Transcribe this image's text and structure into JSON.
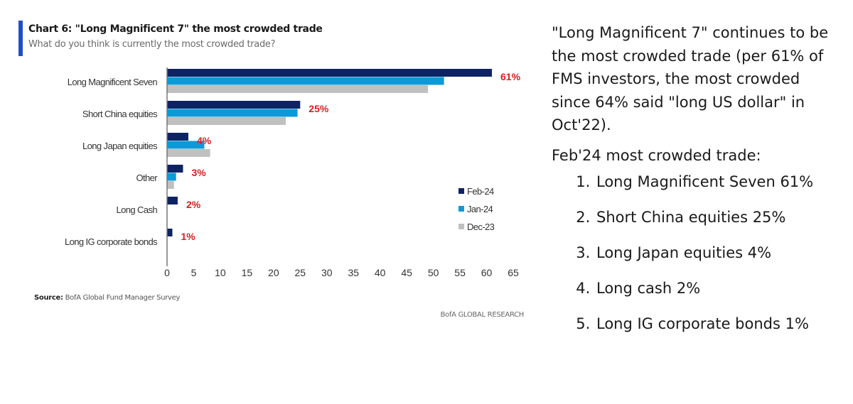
{
  "header": {
    "title": "Chart 6: \"Long Magnificent 7\" the most crowded trade",
    "subtitle": "What do you think is currently the most crowded trade?"
  },
  "footer": {
    "source_label": "Source:",
    "source_text": "BofA Global Fund Manager Survey",
    "brand": "BofA GLOBAL RESEARCH"
  },
  "commentary": {
    "paragraph": "\"Long Magnificent 7\" continues to be the most crowded trade (per 61% of FMS investors, the most crowded since 64% said \"long US dollar\" in Oct'22).",
    "list_heading": "Feb'24 most crowded trade:",
    "list": [
      "Long Magnificent Seven 61%",
      "Short China equities 25%",
      "Long Japan equities 4%",
      "Long cash 2%",
      "Long IG corporate bonds 1%"
    ]
  },
  "chart_data": {
    "type": "bar",
    "orientation": "horizontal",
    "title": "Chart 6: \"Long Magnificent 7\" the most crowded trade",
    "subtitle": "What do you think is currently the most crowded trade?",
    "xlabel": "",
    "ylabel": "",
    "xlim": [
      0,
      65
    ],
    "xticks": [
      0,
      5,
      10,
      15,
      20,
      25,
      30,
      35,
      40,
      45,
      50,
      55,
      60,
      65
    ],
    "grid": false,
    "legend_position": "right",
    "categories": [
      "Long Magnificent Seven",
      "Short China equities",
      "Long Japan equities",
      "Other",
      "Long Cash",
      "Long IG corporate bonds"
    ],
    "series": [
      {
        "name": "Feb-24",
        "color": "#0d2463",
        "values": [
          61,
          25,
          4,
          3,
          2,
          1
        ]
      },
      {
        "name": "Jan-24",
        "color": "#0b9ad8",
        "values": [
          52,
          24.5,
          7,
          1.7,
          null,
          null
        ]
      },
      {
        "name": "Dec-23",
        "color": "#c0c0c0",
        "values": [
          49,
          22.3,
          8.1,
          1.3,
          null,
          null
        ]
      }
    ],
    "data_labels": {
      "series": "Feb-24",
      "color": "#d92020",
      "labels": [
        "61%",
        "25%",
        "4%",
        "3%",
        "2%",
        "1%"
      ]
    }
  }
}
